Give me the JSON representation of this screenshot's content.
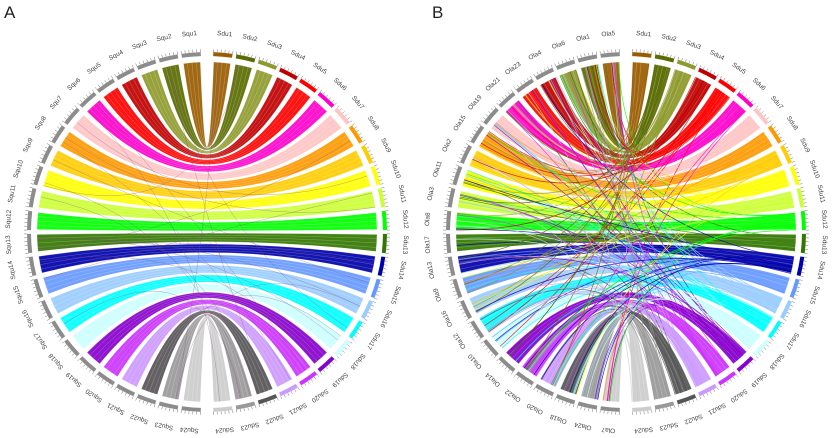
{
  "panels": [
    {
      "letter": "A",
      "right_chromosomes": [
        "Sdu1",
        "Sdu2",
        "Sdu3",
        "Sdu4",
        "Sdu5",
        "Sdu6",
        "Sdu7",
        "Sdu8",
        "Sdu9",
        "Sdu10",
        "Sdu11",
        "Sdu12",
        "Sdu13",
        "Sdu14",
        "Sdu15",
        "Sdu16",
        "Sdu17",
        "Sdu18",
        "Sdu19",
        "Sdu20",
        "Sdu21",
        "Sdu22",
        "Sdu23",
        "Sdu24"
      ],
      "left_chromosomes": [
        "Squ1",
        "Squ2",
        "Squ3",
        "Squ4",
        "Squ5",
        "Squ6",
        "Squ7",
        "Squ8",
        "Squ9",
        "Squ10",
        "Squ11",
        "Squ12",
        "Squ13",
        "Squ14",
        "Squ15",
        "Squ16",
        "Squ17",
        "Squ18",
        "Squ19",
        "Squ20",
        "Squ21",
        "Squ22",
        "Squ23",
        "Squ24"
      ],
      "left_color": "#8c8c8c",
      "scatter_links": false
    },
    {
      "letter": "B",
      "right_chromosomes": [
        "Sdu1",
        "Sdu2",
        "Sdu3",
        "Sdu4",
        "Sdu5",
        "Sdu6",
        "Sdu7",
        "Sdu8",
        "Sdu9",
        "Sdu10",
        "Sdu11",
        "Sdu12",
        "Sdu13",
        "Sdu14",
        "Sdu15",
        "Sdu16",
        "Sdu17",
        "Sdu18",
        "Sdu19",
        "Sdu20",
        "Sdu21",
        "Sdu22",
        "Sdu23",
        "Sdu24"
      ],
      "left_chromosomes": [
        "Ola5",
        "Ola1",
        "Ola6",
        "Ola4",
        "Ola23",
        "Ola21",
        "Ola19",
        "Ola15",
        "Ola2",
        "Ola11",
        "Ola3",
        "Ola8",
        "Ola17",
        "Ola13",
        "Ola9",
        "Ola16",
        "Ola12",
        "Ola10",
        "Ola14",
        "Ola22",
        "Ola20",
        "Ola18",
        "Ola24",
        "Ola7"
      ],
      "left_color": "#8c8c8c",
      "scatter_links": true
    }
  ],
  "chromosome_colors": [
    "#9a5c00",
    "#5a6b00",
    "#8e9a2c",
    "#c00000",
    "#ff0000",
    "#ff00cc",
    "#ffc4c4",
    "#ff9900",
    "#ffcc00",
    "#ffff00",
    "#ccff33",
    "#00ff00",
    "#337700",
    "#0000aa",
    "#6699ff",
    "#99ccff",
    "#00ffff",
    "#ccffff",
    "#8800cc",
    "#cc33ff",
    "#cc99ff",
    "#555555",
    "#999999",
    "#cccccc"
  ]
}
